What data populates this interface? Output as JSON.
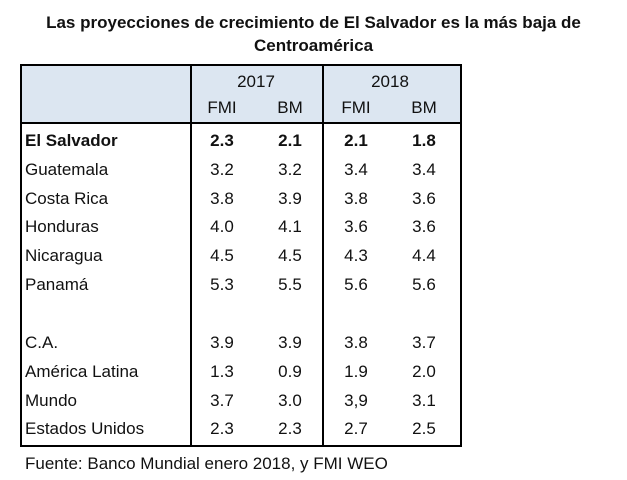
{
  "title": "Las proyecciones de crecimiento de El Salvador es la más baja de Centroamérica",
  "table": {
    "years": [
      "2017",
      "2018"
    ],
    "columns": [
      "FMI",
      "BM",
      "FMI",
      "BM"
    ],
    "rows": [
      {
        "label": "El Salvador",
        "values": [
          "2.3",
          "2.1",
          "2.1",
          "1.8"
        ]
      },
      {
        "label": "Guatemala",
        "values": [
          "3.2",
          "3.2",
          "3.4",
          "3.4"
        ]
      },
      {
        "label": "Costa Rica",
        "values": [
          "3.8",
          "3.9",
          "3.8",
          "3.6"
        ]
      },
      {
        "label": "Honduras",
        "values": [
          "4.0",
          "4.1",
          "3.6",
          "3.6"
        ]
      },
      {
        "label": "Nicaragua",
        "values": [
          "4.5",
          "4.5",
          "4.3",
          "4.4"
        ]
      },
      {
        "label": "Panamá",
        "values": [
          "5.3",
          "5.5",
          "5.6",
          "5.6"
        ]
      },
      {
        "label": "C.A.",
        "values": [
          "3.9",
          "3.9",
          "3.8",
          "3.7"
        ]
      },
      {
        "label": "América Latina",
        "values": [
          "1.3",
          "0.9",
          "1.9",
          "2.0"
        ]
      },
      {
        "label": "Mundo",
        "values": [
          "3.7",
          "3.0",
          "3,9",
          "3.1"
        ]
      },
      {
        "label": "Estados Unidos",
        "values": [
          "2.3",
          "2.3",
          "2.7",
          "2.5"
        ]
      }
    ]
  },
  "source": "Fuente: Banco Mundial enero 2018, y FMI WEO"
}
